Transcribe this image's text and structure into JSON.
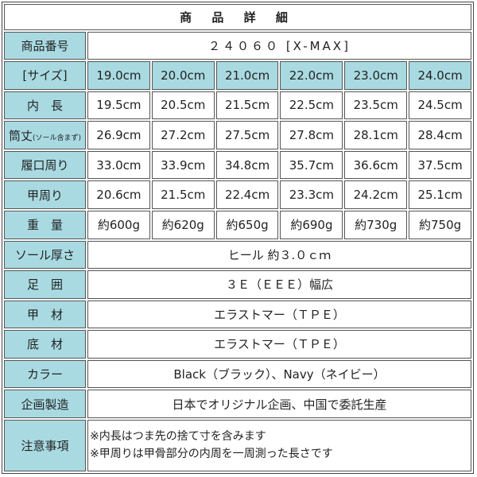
{
  "title": "商 品 詳 細",
  "product_number": {
    "label": "商品番号",
    "value": "２４０６０ [X-MAX]"
  },
  "size_row": {
    "label": "[サイズ]",
    "values": [
      "19.0cm",
      "20.0cm",
      "21.0cm",
      "22.0cm",
      "23.0cm",
      "24.0cm"
    ]
  },
  "rows": [
    {
      "label": "内　長",
      "label_small": "",
      "values": [
        "19.5cm",
        "20.5cm",
        "21.5cm",
        "22.5cm",
        "23.5cm",
        "24.5cm"
      ]
    },
    {
      "label": "筒丈",
      "label_small": "(ソール含まず)",
      "values": [
        "26.9cm",
        "27.2cm",
        "27.5cm",
        "27.8cm",
        "28.1cm",
        "28.4cm"
      ]
    },
    {
      "label": "履口周り",
      "label_small": "",
      "values": [
        "33.0cm",
        "33.9cm",
        "34.8cm",
        "35.7cm",
        "36.6cm",
        "37.5cm"
      ]
    },
    {
      "label": "甲周り",
      "label_small": "",
      "values": [
        "20.6cm",
        "21.5cm",
        "22.4cm",
        "23.3cm",
        "24.2cm",
        "25.1cm"
      ]
    },
    {
      "label": "重　量",
      "label_small": "",
      "values": [
        "約600g",
        "約620g",
        "約650g",
        "約690g",
        "約730g",
        "約750g"
      ]
    }
  ],
  "specs": [
    {
      "label": "ソール厚さ",
      "value": "ヒール 約３.０ｃｍ"
    },
    {
      "label": "足　囲",
      "value": "３Ｅ（ＥＥＥ）幅広"
    },
    {
      "label": "甲　材",
      "value": "エラストマー（ＴＰＥ）"
    },
    {
      "label": "底　材",
      "value": "エラストマー（ＴＰＥ）"
    },
    {
      "label": "カラー",
      "value": "Black（ブラック）、Navy（ネイビー）"
    },
    {
      "label": "企画製造",
      "value": "日本でオリジナル企画、中国で委託生産"
    }
  ],
  "notes": {
    "label": "注意事項",
    "lines": [
      "※内長はつま先の捨て寸を含みます",
      "※甲周りは甲骨部分の内周を一周測った長さです"
    ]
  },
  "colors": {
    "label_bg": "#a9dae2",
    "border": "#555555"
  }
}
